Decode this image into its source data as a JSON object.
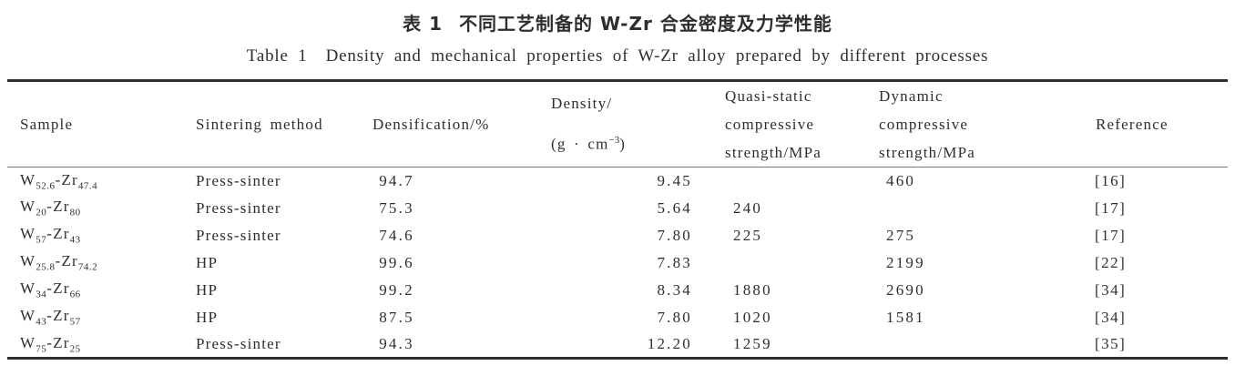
{
  "page": {
    "background_color": "#ffffff",
    "text_color": "#2e2e2e",
    "rule_thick_color": "#2f2f2f",
    "rule_thin_color": "#777777"
  },
  "title_cn": {
    "label": "表 1",
    "text": "不同工艺制备的 W-Zr 合金密度及力学性能"
  },
  "title_en": {
    "label": "Table 1",
    "text": "Density and mechanical properties of W-Zr alloy prepared by different processes"
  },
  "table": {
    "header": {
      "sample": "Sample",
      "sintering_method": "Sintering method",
      "densification": "Densification/%",
      "density_line1": "Density/",
      "density_line2_pre": "(g · cm",
      "density_line2_sup": "−3",
      "density_line2_post": ")",
      "quasi_static_lines": [
        "Quasi-static",
        "compressive",
        "strength/MPa"
      ],
      "dynamic_lines": [
        "Dynamic",
        "compressive",
        "strength/MPa"
      ],
      "reference": "Reference"
    },
    "rows": [
      {
        "sample_parts": [
          "W",
          "52.6",
          "-Zr",
          "47.4"
        ],
        "sintering_method": "Press-sinter",
        "densification": "94.7",
        "density": "9.45",
        "quasi_static": "",
        "dynamic": "460",
        "reference": "[16]"
      },
      {
        "sample_parts": [
          "W",
          "20",
          "-Zr",
          "80"
        ],
        "sintering_method": "Press-sinter",
        "densification": "75.3",
        "density": "5.64",
        "quasi_static": "240",
        "dynamic": "",
        "reference": "[17]"
      },
      {
        "sample_parts": [
          "W",
          "57",
          "-Zr",
          "43"
        ],
        "sintering_method": "Press-sinter",
        "densification": "74.6",
        "density": "7.80",
        "quasi_static": "225",
        "dynamic": "275",
        "reference": "[17]"
      },
      {
        "sample_parts": [
          "W",
          "25.8",
          "-Zr",
          "74.2"
        ],
        "sintering_method": "HP",
        "densification": "99.6",
        "density": "7.83",
        "quasi_static": "",
        "dynamic": "2199",
        "reference": "[22]"
      },
      {
        "sample_parts": [
          "W",
          "34",
          "-Zr",
          "66"
        ],
        "sintering_method": "HP",
        "densification": "99.2",
        "density": "8.34",
        "quasi_static": "1880",
        "dynamic": "2690",
        "reference": "[34]"
      },
      {
        "sample_parts": [
          "W",
          "43",
          "-Zr",
          "57"
        ],
        "sintering_method": "HP",
        "densification": "87.5",
        "density": "7.80",
        "quasi_static": "1020",
        "dynamic": "1581",
        "reference": "[34]"
      },
      {
        "sample_parts": [
          "W",
          "75",
          "-Zr",
          "25"
        ],
        "sintering_method": "Press-sinter",
        "densification": "94.3",
        "density": "12.20",
        "quasi_static": "1259",
        "dynamic": "",
        "reference": "[35]"
      }
    ]
  }
}
